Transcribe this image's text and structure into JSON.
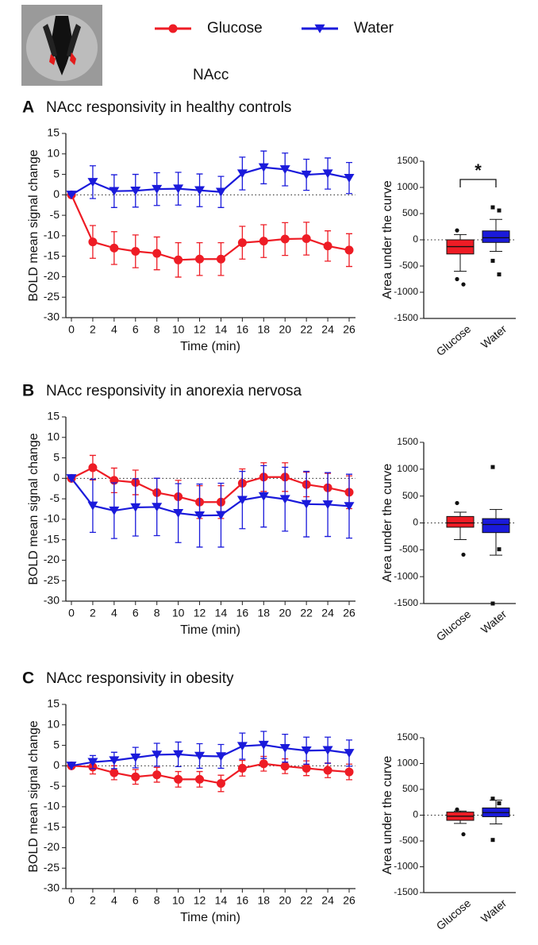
{
  "image_label": "NAcc",
  "chart_data": [
    {
      "type": "line",
      "panel": "A",
      "title": "NAcc responsivity in healthy controls",
      "xlabel": "Time (min)",
      "ylabel": "BOLD mean signal change",
      "x": [
        0,
        2,
        4,
        6,
        8,
        10,
        12,
        14,
        16,
        18,
        20,
        22,
        24,
        26
      ],
      "xlim": [
        0,
        26
      ],
      "xticks": [
        0,
        2,
        4,
        6,
        8,
        10,
        12,
        14,
        16,
        18,
        20,
        22,
        24,
        26
      ],
      "ylim": [
        -30,
        15
      ],
      "yticks": [
        -30,
        -25,
        -20,
        -15,
        -10,
        -5,
        0,
        5,
        10,
        15
      ],
      "series": [
        {
          "name": "Glucose",
          "color": "#ee1c25",
          "marker": "circle",
          "values": [
            0,
            -11.5,
            -13,
            -13.8,
            -14.3,
            -15.9,
            -15.7,
            -15.7,
            -11.7,
            -11.3,
            -10.8,
            -10.7,
            -12.5,
            -13.5
          ],
          "errors": [
            0,
            4,
            4,
            4,
            4,
            4.2,
            4,
            4,
            4,
            4,
            4,
            4,
            3.7,
            4
          ]
        },
        {
          "name": "Water",
          "color": "#1a1adb",
          "marker": "triangle-down",
          "values": [
            0,
            3.1,
            0.9,
            1.0,
            1.4,
            1.5,
            1.1,
            0.7,
            5.2,
            6.7,
            6.2,
            4.9,
            5.2,
            4.1
          ],
          "errors": [
            0,
            4,
            4,
            4,
            4,
            4,
            4,
            3.8,
            4,
            4,
            4,
            3.8,
            3.8,
            3.8
          ]
        }
      ]
    },
    {
      "type": "box",
      "ylabel": "Area under the curve",
      "categories": [
        "Glucose",
        "Water"
      ],
      "ylim": [
        -1500,
        1500
      ],
      "yticks": [
        -1500,
        -1000,
        -500,
        0,
        500,
        1000,
        1500
      ],
      "significance": "*",
      "boxes": [
        {
          "color": "#ee1c25",
          "whisker_low": -600,
          "q1": -270,
          "median": -130,
          "q3": 0,
          "whisker_high": 100,
          "outliers": [
            -750,
            -850,
            180
          ]
        },
        {
          "color": "#1a1adb",
          "whisker_low": -220,
          "q1": -50,
          "median": 40,
          "q3": 170,
          "whisker_high": 390,
          "outliers": [
            620,
            560,
            -400,
            -660
          ]
        }
      ]
    },
    {
      "type": "line",
      "panel": "B",
      "title": "NAcc responsivity in anorexia nervosa",
      "xlabel": "Time (min)",
      "ylabel": "BOLD mean signal change",
      "x": [
        0,
        2,
        4,
        6,
        8,
        10,
        12,
        14,
        16,
        18,
        20,
        22,
        24,
        26
      ],
      "xlim": [
        0,
        26
      ],
      "xticks": [
        0,
        2,
        4,
        6,
        8,
        10,
        12,
        14,
        16,
        18,
        20,
        22,
        24,
        26
      ],
      "ylim": [
        -30,
        15
      ],
      "yticks": [
        -30,
        -25,
        -20,
        -15,
        -10,
        -5,
        0,
        5,
        10,
        15
      ],
      "series": [
        {
          "name": "Glucose",
          "color": "#ee1c25",
          "marker": "circle",
          "values": [
            0,
            2.6,
            -0.5,
            -1.0,
            -3.5,
            -4.5,
            -5.8,
            -5.8,
            -1.2,
            0.3,
            0.3,
            -1.5,
            -2.3,
            -3.4
          ],
          "errors": [
            0,
            3,
            3,
            3,
            3.5,
            4,
            4,
            4,
            3.5,
            3.5,
            3.5,
            3,
            3.5,
            4
          ]
        },
        {
          "name": "Water",
          "color": "#1a1adb",
          "marker": "triangle-down",
          "values": [
            0,
            -6.7,
            -7.9,
            -7.1,
            -7.0,
            -8.5,
            -9.1,
            -9.0,
            -5.3,
            -4.4,
            -5.1,
            -6.3,
            -6.4,
            -6.8
          ],
          "errors": [
            0,
            6.5,
            6.8,
            7,
            7,
            7.2,
            7.7,
            7.8,
            7,
            7.5,
            7.8,
            8,
            7.8,
            7.8
          ]
        }
      ]
    },
    {
      "type": "box",
      "ylabel": "Area under the curve",
      "categories": [
        "Glucose",
        "Water"
      ],
      "ylim": [
        -1500,
        1500
      ],
      "yticks": [
        -1500,
        -1000,
        -500,
        0,
        500,
        1000,
        1500
      ],
      "boxes": [
        {
          "color": "#ee1c25",
          "whisker_low": -310,
          "q1": -80,
          "median": 0,
          "q3": 120,
          "whisker_high": 200,
          "outliers": [
            370,
            -590
          ]
        },
        {
          "color": "#1a1adb",
          "whisker_low": -600,
          "q1": -180,
          "median": -30,
          "q3": 80,
          "whisker_high": 250,
          "outliers": [
            1040,
            -490,
            -1500
          ]
        }
      ]
    },
    {
      "type": "line",
      "panel": "C",
      "title": "NAcc responsivity in obesity",
      "xlabel": "Time (min)",
      "ylabel": "BOLD mean signal change",
      "x": [
        0,
        2,
        4,
        6,
        8,
        10,
        12,
        14,
        16,
        18,
        20,
        22,
        24,
        26
      ],
      "xlim": [
        0,
        26
      ],
      "xticks": [
        0,
        2,
        4,
        6,
        8,
        10,
        12,
        14,
        16,
        18,
        20,
        22,
        24,
        26
      ],
      "ylim": [
        -30,
        15
      ],
      "yticks": [
        -30,
        -25,
        -20,
        -15,
        -10,
        -5,
        0,
        5,
        10,
        15
      ],
      "series": [
        {
          "name": "Glucose",
          "color": "#ee1c25",
          "marker": "circle",
          "values": [
            0,
            -0.3,
            -1.7,
            -2.7,
            -2.2,
            -3.3,
            -3.3,
            -4.3,
            -0.6,
            0.5,
            -0.1,
            -0.6,
            -1.1,
            -1.5
          ],
          "errors": [
            0,
            1.7,
            1.7,
            1.8,
            1.8,
            1.9,
            1.9,
            2,
            1.9,
            1.8,
            1.8,
            1.8,
            1.8,
            1.9
          ]
        },
        {
          "name": "Water",
          "color": "#1a1adb",
          "marker": "triangle-down",
          "values": [
            0,
            0.9,
            1.3,
            2.0,
            2.7,
            2.8,
            2.4,
            2.3,
            4.8,
            5.1,
            4.3,
            3.7,
            3.8,
            3.1
          ],
          "errors": [
            0,
            1.6,
            2,
            2.5,
            2.8,
            3,
            3,
            2.9,
            3.2,
            3.3,
            3.4,
            3.3,
            3.2,
            3.2
          ]
        }
      ]
    },
    {
      "type": "box",
      "ylabel": "Area under the curve",
      "categories": [
        "Glucose",
        "Water"
      ],
      "ylim": [
        -1500,
        1500
      ],
      "yticks": [
        -1500,
        -1000,
        -500,
        0,
        500,
        1000,
        1500
      ],
      "boxes": [
        {
          "color": "#ee1c25",
          "whisker_low": -160,
          "q1": -100,
          "median": -20,
          "q3": 60,
          "whisker_high": 80,
          "outliers": [
            110,
            -370
          ]
        },
        {
          "color": "#1a1adb",
          "whisker_low": -170,
          "q1": -30,
          "median": 50,
          "q3": 140,
          "whisker_high": 290,
          "outliers": [
            320,
            230,
            -480
          ]
        }
      ]
    }
  ]
}
